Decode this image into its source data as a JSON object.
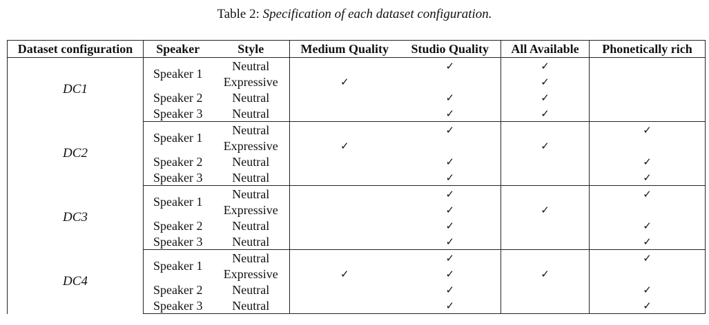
{
  "caption": {
    "prefix": "Table 2:",
    "text": "Specification of each dataset configuration."
  },
  "check_glyph": "✓",
  "columns": {
    "dataset_configuration": "Dataset configuration",
    "speaker": "Speaker",
    "style": "Style",
    "medium_quality": "Medium Quality",
    "studio_quality": "Studio Quality",
    "all_available": "All Available",
    "phonetically_rich": "Phonetically rich"
  },
  "groups": [
    {
      "name": "DC1",
      "rows": [
        {
          "speaker": "Speaker 1",
          "style": "Neutral",
          "medium": false,
          "studio": true,
          "all": true,
          "phon": false
        },
        {
          "speaker": "",
          "style": "Expressive",
          "medium": true,
          "studio": false,
          "all": true,
          "phon": false
        },
        {
          "speaker": "Speaker 2",
          "style": "Neutral",
          "medium": false,
          "studio": true,
          "all": true,
          "phon": false
        },
        {
          "speaker": "Speaker 3",
          "style": "Neutral",
          "medium": false,
          "studio": true,
          "all": true,
          "phon": false
        }
      ]
    },
    {
      "name": "DC2",
      "rows": [
        {
          "speaker": "Speaker 1",
          "style": "Neutral",
          "medium": false,
          "studio": true,
          "all": false,
          "phon": true
        },
        {
          "speaker": "",
          "style": "Expressive",
          "medium": true,
          "studio": false,
          "all": true,
          "phon": false
        },
        {
          "speaker": "Speaker 2",
          "style": "Neutral",
          "medium": false,
          "studio": true,
          "all": false,
          "phon": true
        },
        {
          "speaker": "Speaker 3",
          "style": "Neutral",
          "medium": false,
          "studio": true,
          "all": false,
          "phon": true
        }
      ]
    },
    {
      "name": "DC3",
      "rows": [
        {
          "speaker": "Speaker 1",
          "style": "Neutral",
          "medium": false,
          "studio": true,
          "all": false,
          "phon": true
        },
        {
          "speaker": "",
          "style": "Expressive",
          "medium": false,
          "studio": true,
          "all": true,
          "phon": false
        },
        {
          "speaker": "Speaker 2",
          "style": "Neutral",
          "medium": false,
          "studio": true,
          "all": false,
          "phon": true
        },
        {
          "speaker": "Speaker 3",
          "style": "Neutral",
          "medium": false,
          "studio": true,
          "all": false,
          "phon": true
        }
      ]
    },
    {
      "name": "DC4",
      "rows": [
        {
          "speaker": "Speaker 1",
          "style": "Neutral",
          "medium": false,
          "studio": true,
          "all": false,
          "phon": true
        },
        {
          "speaker": "",
          "style": "Expressive",
          "medium": true,
          "studio": true,
          "all": true,
          "phon": false
        },
        {
          "speaker": "Speaker 2",
          "style": "Neutral",
          "medium": false,
          "studio": true,
          "all": false,
          "phon": true
        },
        {
          "speaker": "Speaker 3",
          "style": "Neutral",
          "medium": false,
          "studio": true,
          "all": false,
          "phon": true
        }
      ]
    }
  ]
}
